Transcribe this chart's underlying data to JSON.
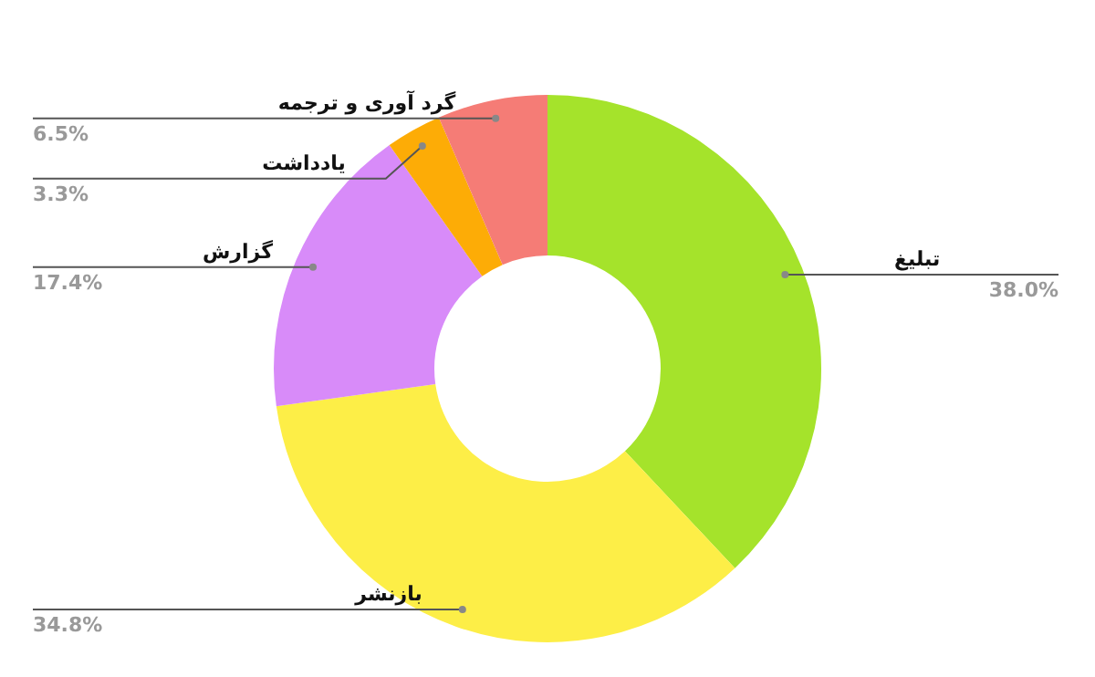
{
  "chart_data": {
    "type": "donut",
    "categories": [
      "تبلیغ",
      "بازنشر",
      "گزارش",
      "یادداشت",
      "گرد آوری و ترجمه"
    ],
    "values": [
      38.0,
      34.8,
      17.4,
      3.3,
      6.5
    ],
    "colors": [
      "#a5e32b",
      "#fdee47",
      "#d88bf9",
      "#fdac06",
      "#f57c76"
    ],
    "value_labels": [
      "38.0%",
      "34.8%",
      "17.4%",
      "3.3%",
      "6.5%"
    ]
  }
}
